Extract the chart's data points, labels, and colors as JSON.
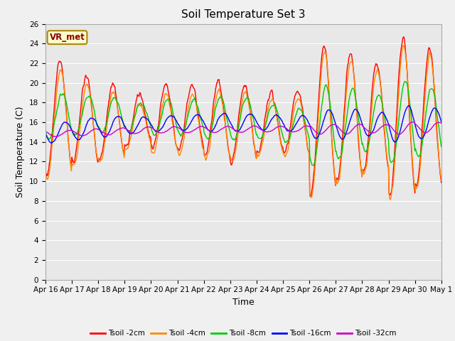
{
  "title": "Soil Temperature Set 3",
  "xlabel": "Time",
  "ylabel": "Soil Temperature (C)",
  "annotation": "VR_met",
  "ylim": [
    0,
    26
  ],
  "yticks": [
    0,
    2,
    4,
    6,
    8,
    10,
    12,
    14,
    16,
    18,
    20,
    22,
    24,
    26
  ],
  "xtick_labels": [
    "Apr 16",
    "Apr 17",
    "Apr 18",
    "Apr 19",
    "Apr 20",
    "Apr 21",
    "Apr 22",
    "Apr 23",
    "Apr 24",
    "Apr 25",
    "Apr 26",
    "Apr 27",
    "Apr 28",
    "Apr 29",
    "Apr 30",
    "May 1"
  ],
  "legend_labels": [
    "Tsoil -2cm",
    "Tsoil -4cm",
    "Tsoil -8cm",
    "Tsoil -16cm",
    "Tsoil -32cm"
  ],
  "line_colors": [
    "#ff0000",
    "#ff8800",
    "#00cc00",
    "#0000ff",
    "#cc00cc"
  ],
  "background_color": "#f0f0f0",
  "plot_bg_color": "#e8e8e8",
  "title_fontsize": 11,
  "axis_label_fontsize": 9,
  "tick_fontsize": 7.5
}
